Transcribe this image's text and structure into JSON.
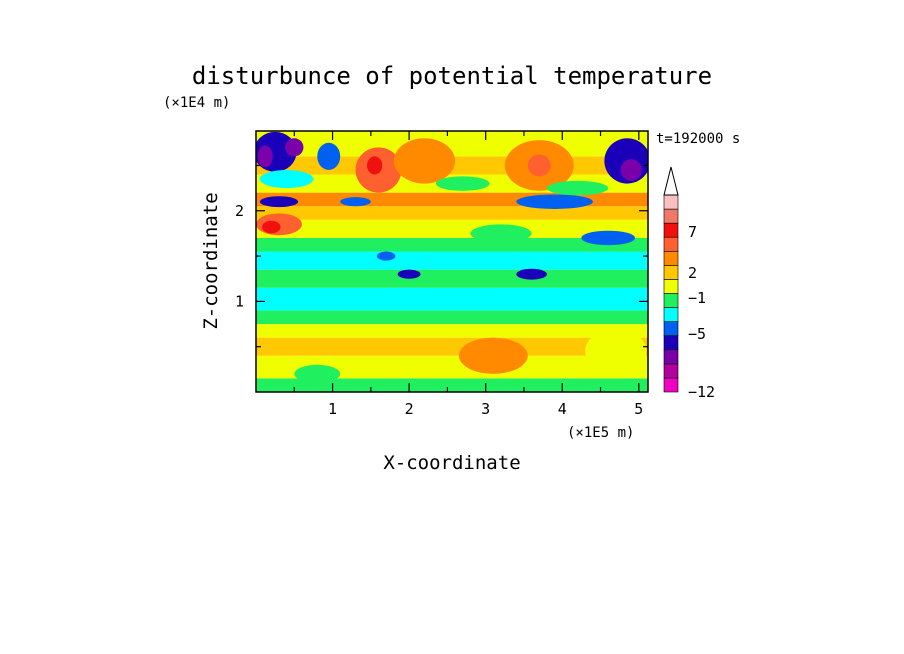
{
  "chart_data": {
    "type": "heatmap",
    "title": "disturbunce of potential temperature",
    "xlabel": "X-coordinate",
    "ylabel": "Z-coordinate",
    "x_unit": "(×1E5 m)",
    "y_unit": "(×1E4 m)",
    "time_label": "t=192000 s",
    "xlim": [
      0,
      5.12
    ],
    "ylim": [
      0,
      2.88
    ],
    "x_ticks": [
      "1",
      "2",
      "3",
      "4",
      "5"
    ],
    "x_tick_values": [
      1,
      2,
      3,
      4,
      5
    ],
    "y_ticks": [
      "1",
      "2"
    ],
    "y_tick_values": [
      1,
      2
    ],
    "colorbar": {
      "tick_labels": [
        "7",
        "2",
        "−1",
        "−5",
        "−12"
      ],
      "colors": [
        "#f000c0",
        "#b4009e",
        "#7a00aa",
        "#1a00b8",
        "#0060f0",
        "#00ffff",
        "#20f060",
        "#f0ff00",
        "#ffc800",
        "#ff8a00",
        "#ff6030",
        "#f01010",
        "#f07868",
        "#f8c0c0"
      ]
    },
    "bands": [
      {
        "z": [
          0.0,
          0.15
        ],
        "c": 6
      },
      {
        "z": [
          0.15,
          0.4
        ],
        "c": 7
      },
      {
        "z": [
          0.4,
          0.6
        ],
        "c": 8
      },
      {
        "z": [
          0.6,
          0.75
        ],
        "c": 7
      },
      {
        "z": [
          0.75,
          0.9
        ],
        "c": 6
      },
      {
        "z": [
          0.9,
          1.15
        ],
        "c": 5
      },
      {
        "z": [
          1.15,
          1.35
        ],
        "c": 6
      },
      {
        "z": [
          1.35,
          1.55
        ],
        "c": 5
      },
      {
        "z": [
          1.55,
          1.7
        ],
        "c": 6
      },
      {
        "z": [
          1.7,
          1.9
        ],
        "c": 7
      },
      {
        "z": [
          1.9,
          2.05
        ],
        "c": 8
      },
      {
        "z": [
          2.05,
          2.2
        ],
        "c": 9
      },
      {
        "z": [
          2.2,
          2.4
        ],
        "c": 7
      },
      {
        "z": [
          2.4,
          2.6
        ],
        "c": 8
      },
      {
        "z": [
          2.6,
          2.88
        ],
        "c": 7
      }
    ],
    "blobs": [
      {
        "x": 0.25,
        "z": 2.65,
        "rx": 0.28,
        "rz": 0.22,
        "c": 3
      },
      {
        "x": 0.12,
        "z": 2.6,
        "rx": 0.1,
        "rz": 0.12,
        "c": 2
      },
      {
        "x": 0.5,
        "z": 2.7,
        "rx": 0.12,
        "rz": 0.1,
        "c": 2
      },
      {
        "x": 0.95,
        "z": 2.6,
        "rx": 0.15,
        "rz": 0.15,
        "c": 4
      },
      {
        "x": 4.85,
        "z": 2.55,
        "rx": 0.3,
        "rz": 0.25,
        "c": 3
      },
      {
        "x": 4.9,
        "z": 2.45,
        "rx": 0.14,
        "rz": 0.12,
        "c": 2
      },
      {
        "x": 0.3,
        "z": 1.85,
        "rx": 0.3,
        "rz": 0.12,
        "c": 10
      },
      {
        "x": 0.2,
        "z": 1.82,
        "rx": 0.12,
        "rz": 0.07,
        "c": 11
      },
      {
        "x": 1.6,
        "z": 2.45,
        "rx": 0.3,
        "rz": 0.25,
        "c": 10
      },
      {
        "x": 1.55,
        "z": 2.5,
        "rx": 0.1,
        "rz": 0.1,
        "c": 11
      },
      {
        "x": 2.2,
        "z": 2.55,
        "rx": 0.4,
        "rz": 0.25,
        "c": 9
      },
      {
        "x": 3.7,
        "z": 2.5,
        "rx": 0.45,
        "rz": 0.28,
        "c": 9
      },
      {
        "x": 3.7,
        "z": 2.5,
        "rx": 0.15,
        "rz": 0.12,
        "c": 10
      },
      {
        "x": 0.3,
        "z": 2.1,
        "rx": 0.25,
        "rz": 0.06,
        "c": 3
      },
      {
        "x": 3.9,
        "z": 2.1,
        "rx": 0.5,
        "rz": 0.08,
        "c": 4
      },
      {
        "x": 4.6,
        "z": 1.7,
        "rx": 0.35,
        "rz": 0.08,
        "c": 4
      },
      {
        "x": 2.0,
        "z": 1.3,
        "rx": 0.15,
        "rz": 0.05,
        "c": 3
      },
      {
        "x": 3.6,
        "z": 1.3,
        "rx": 0.2,
        "rz": 0.06,
        "c": 3
      },
      {
        "x": 1.7,
        "z": 1.5,
        "rx": 0.12,
        "rz": 0.05,
        "c": 4
      },
      {
        "x": 0.4,
        "z": 2.35,
        "rx": 0.35,
        "rz": 0.1,
        "c": 5
      },
      {
        "x": 2.7,
        "z": 2.3,
        "rx": 0.35,
        "rz": 0.08,
        "c": 6
      },
      {
        "x": 4.2,
        "z": 2.25,
        "rx": 0.4,
        "rz": 0.08,
        "c": 6
      },
      {
        "x": 3.1,
        "z": 0.4,
        "rx": 0.45,
        "rz": 0.2,
        "c": 9
      },
      {
        "x": 4.7,
        "z": 0.45,
        "rx": 0.4,
        "rz": 0.25,
        "c": 7
      },
      {
        "x": 0.8,
        "z": 0.2,
        "rx": 0.3,
        "rz": 0.1,
        "c": 6
      },
      {
        "x": 3.2,
        "z": 1.75,
        "rx": 0.4,
        "rz": 0.1,
        "c": 6
      },
      {
        "x": 1.3,
        "z": 2.1,
        "rx": 0.2,
        "rz": 0.05,
        "c": 4
      }
    ]
  }
}
